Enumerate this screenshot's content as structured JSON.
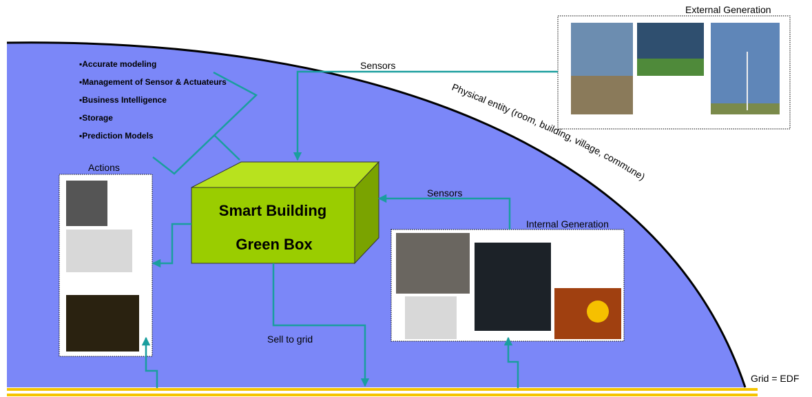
{
  "external_generation": {
    "title": "External Generation"
  },
  "features": [
    "▪Accurate modeling",
    "▪Management of Sensor & Actuateurs",
    "▪Business Intelligence",
    "▪Storage",
    "▪Prediction Models"
  ],
  "sensors_top": "Sensors",
  "physical_entity": "Physical entity (room, building, village, commune)",
  "actions": {
    "title": "Actions"
  },
  "green_box": {
    "line1": "Smart Building",
    "line2": "Green Box"
  },
  "sensors_internal": "Sensors",
  "internal_generation": {
    "title": "Internal Generation"
  },
  "sell_to_grid": "Sell to grid",
  "grid": "Grid = EDF"
}
